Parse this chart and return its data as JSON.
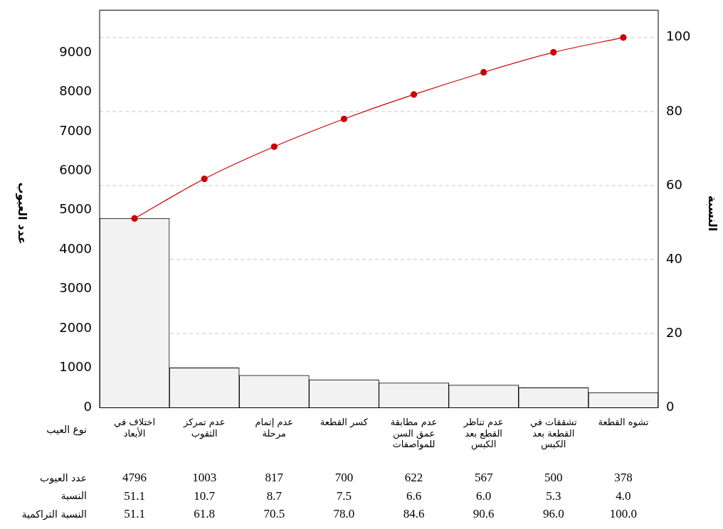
{
  "chart_data": {
    "type": "bar",
    "categories": [
      "اختلاف في الأبعاد",
      "عدم تمركز الثقوب",
      "عدم إتمام مرحلة",
      "كسر القطعة",
      "عدم مطابقة عمق السن للمواصفات",
      "عدم تناظر القطع بعد الكبس",
      "تشققات في القطعة بعد الكبس",
      "تشوه القطعة"
    ],
    "series": [
      {
        "color": "#f2f2f2",
        "values": [
          4796,
          1003,
          817,
          700,
          622,
          567,
          500,
          378
        ]
      },
      {
        "type": "line",
        "axis": "y2",
        "color": "#cc0000",
        "values": [
          51.1,
          61.8,
          70.5,
          78.0,
          84.6,
          90.6,
          96.0,
          100.0
        ]
      }
    ],
    "xlabel": "نوع العيب",
    "ylabel": "عدد العيوب",
    "y2label": "النسبة",
    "ylim": [
      0,
      10087
    ],
    "yticks": [
      0,
      1000,
      2000,
      3000,
      4000,
      5000,
      6000,
      7000,
      8000,
      9000
    ],
    "y2lim": [
      0,
      107.5
    ],
    "y2ticks": [
      0,
      20,
      40,
      60,
      80,
      100
    ],
    "grid": "y",
    "legend": false,
    "marker": "circle",
    "line_style": "solid",
    "annotations": [
      "عدد العيوب",
      "4796",
      "1003",
      "817",
      "700",
      "622",
      "567",
      "500",
      "378",
      "النسبة",
      "51.1",
      "10.7",
      "8.7",
      "7.5",
      "6.6",
      "6.0",
      "5.3",
      "4.0",
      "النسبة التراكمية",
      "51.1",
      "61.8",
      "70.5",
      "78.0",
      "84.6",
      "90.6",
      "96.0",
      "100.0"
    ]
  }
}
